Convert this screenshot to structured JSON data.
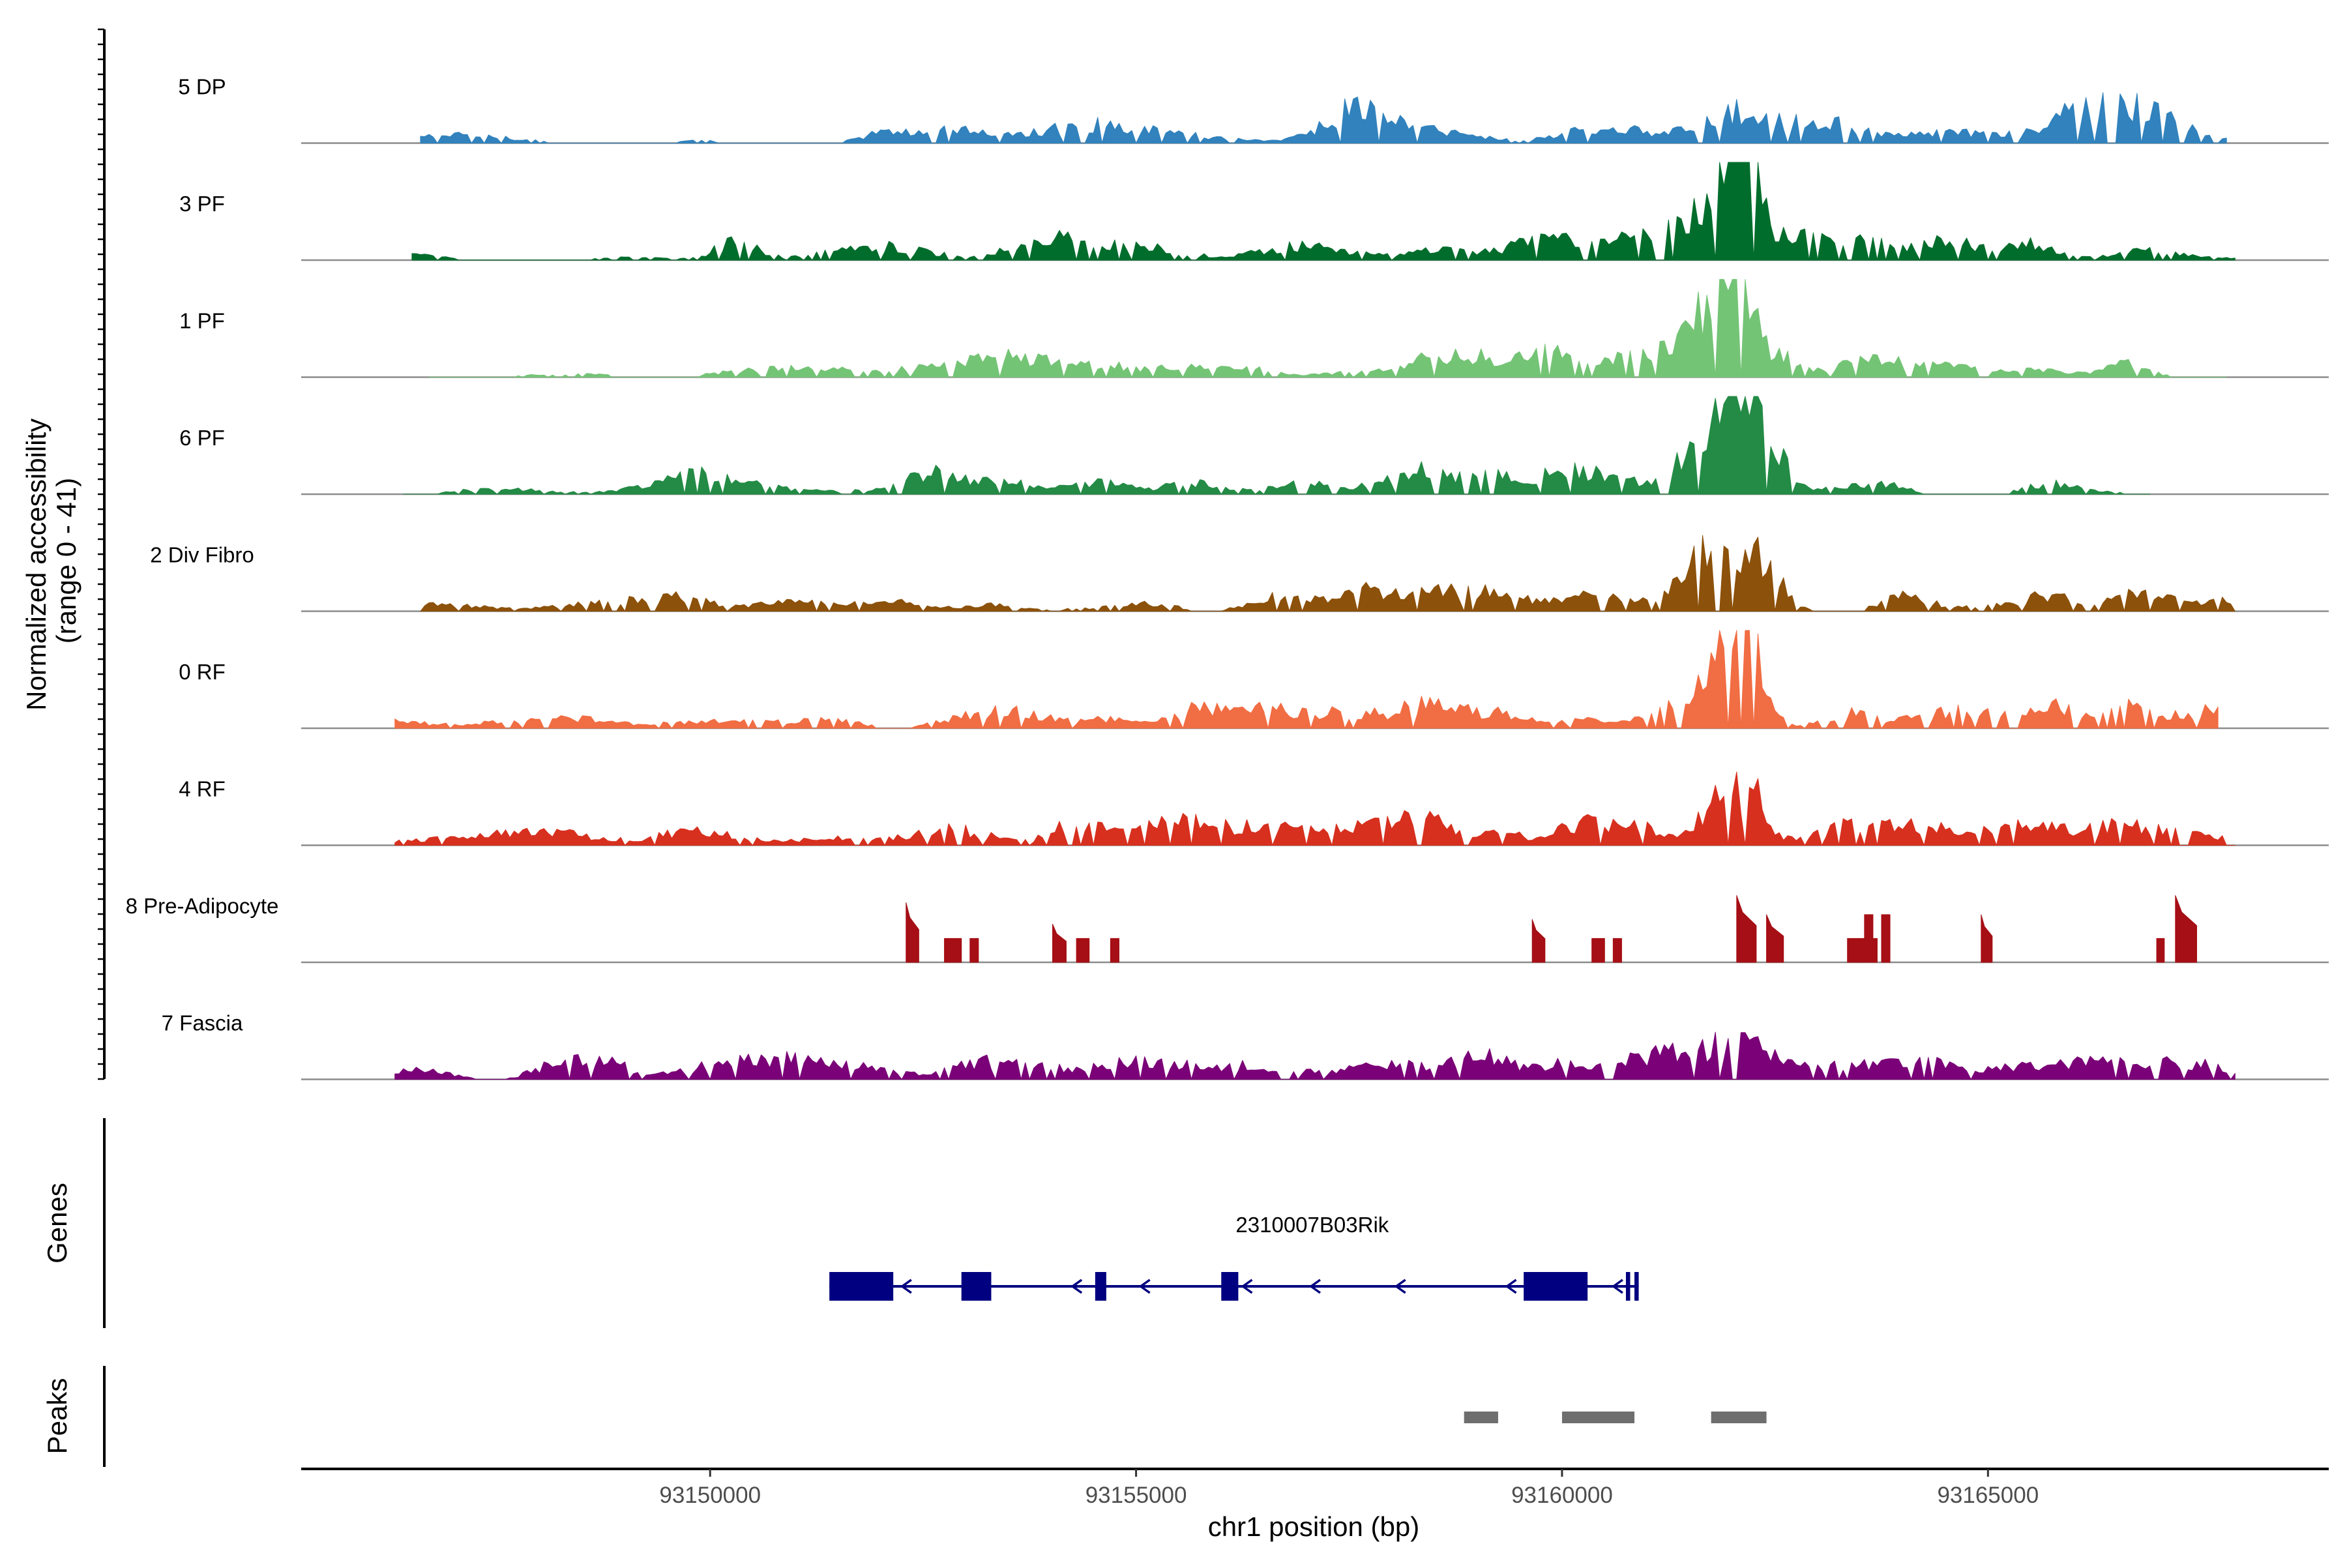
{
  "chart_data": {
    "type": "area",
    "title": "",
    "ylabel_line1": "Normalized accessibility",
    "ylabel_line2": "(range 0 - 41)",
    "y_range": [
      0,
      41
    ],
    "x_range": [
      93145200,
      93169000
    ],
    "xlabel": "chr1 position (bp)",
    "x_ticks": [
      93150000,
      93155000,
      93160000,
      93165000
    ],
    "x_tick_labels": [
      "93150000",
      "93155000",
      "93160000",
      "93165000"
    ],
    "bin_size_bp": 50,
    "tracks": [
      {
        "name": "5 DP",
        "color": "#3182bd",
        "start": 93146600,
        "end": 93167800,
        "peaks": [
          [
            93152000,
            3,
            300
          ],
          [
            93152900,
            3,
            300
          ],
          [
            93154300,
            5,
            500
          ],
          [
            93157600,
            11,
            350
          ],
          [
            93158600,
            5,
            600
          ],
          [
            93160500,
            5,
            500
          ],
          [
            93161800,
            6,
            400
          ],
          [
            93162300,
            9,
            400
          ],
          [
            93163200,
            4,
            300
          ],
          [
            93164500,
            3,
            300
          ],
          [
            93166100,
            8,
            300
          ],
          [
            93166600,
            8,
            400
          ],
          [
            93167000,
            7,
            400
          ]
        ]
      },
      {
        "name": "3 PF",
        "color": "#006d2c",
        "start": 93146500,
        "end": 93167900,
        "peaks": [
          [
            93150300,
            8,
            250
          ],
          [
            93152000,
            3,
            400
          ],
          [
            93154000,
            5,
            400
          ],
          [
            93155200,
            4,
            400
          ],
          [
            93157000,
            4,
            500
          ],
          [
            93158500,
            5,
            500
          ],
          [
            93159800,
            6,
            350
          ],
          [
            93160500,
            5,
            400
          ],
          [
            93161200,
            7,
            400
          ],
          [
            93161700,
            11,
            280
          ],
          [
            93161950,
            13,
            200
          ],
          [
            93162200,
            34,
            110
          ],
          [
            93162150,
            18,
            260
          ],
          [
            93162900,
            8,
            200
          ],
          [
            93163500,
            6,
            400
          ],
          [
            93164500,
            4,
            300
          ],
          [
            93165500,
            5,
            300
          ],
          [
            93166800,
            4,
            400
          ]
        ]
      },
      {
        "name": "1 PF",
        "color": "#74c476",
        "start": 93146700,
        "end": 93167800,
        "peaks": [
          [
            93152500,
            2,
            600
          ],
          [
            93153500,
            4,
            400
          ],
          [
            93154500,
            5,
            400
          ],
          [
            93155500,
            3,
            500
          ],
          [
            93156300,
            2,
            400
          ],
          [
            93157500,
            3,
            400
          ],
          [
            93158500,
            5,
            400
          ],
          [
            93159200,
            5,
            500
          ],
          [
            93159800,
            7,
            200
          ],
          [
            93160600,
            4,
            500
          ],
          [
            93161300,
            5,
            400
          ],
          [
            93161800,
            11,
            250
          ],
          [
            93162100,
            33,
            150
          ],
          [
            93161900,
            17,
            250
          ],
          [
            93162600,
            6,
            200
          ],
          [
            93163600,
            4,
            400
          ],
          [
            93164500,
            3,
            400
          ],
          [
            93165500,
            4,
            400
          ],
          [
            93166600,
            5,
            200
          ]
        ]
      },
      {
        "name": "6 PF",
        "color": "#238b45",
        "start": 93146400,
        "end": 93166900,
        "peaks": [
          [
            93149800,
            5,
            400
          ],
          [
            93152600,
            6,
            250
          ],
          [
            93153500,
            5,
            400
          ],
          [
            93154500,
            5,
            300
          ],
          [
            93155800,
            4,
            400
          ],
          [
            93156900,
            5,
            300
          ],
          [
            93158300,
            7,
            300
          ],
          [
            93159100,
            6,
            400
          ],
          [
            93160200,
            6,
            400
          ],
          [
            93161500,
            5,
            300
          ],
          [
            93161900,
            18,
            350
          ],
          [
            93162100,
            22,
            250
          ],
          [
            93162400,
            12,
            200
          ],
          [
            93163800,
            4,
            300
          ],
          [
            93165700,
            3,
            300
          ]
        ]
      },
      {
        "name": "2 Div Fibro",
        "color": "#8c510a",
        "start": 93146600,
        "end": 93167900,
        "peaks": [
          [
            93149700,
            3,
            300
          ],
          [
            93150900,
            3,
            300
          ],
          [
            93152300,
            3,
            400
          ],
          [
            93153300,
            4,
            300
          ],
          [
            93155200,
            3,
            300
          ],
          [
            93156700,
            4,
            300
          ],
          [
            93157700,
            6,
            200
          ],
          [
            93158400,
            9,
            250
          ],
          [
            93159100,
            5,
            300
          ],
          [
            93160400,
            5,
            300
          ],
          [
            93161300,
            6,
            300
          ],
          [
            93161800,
            25,
            250
          ],
          [
            93162300,
            22,
            220
          ],
          [
            93164000,
            7,
            300
          ],
          [
            93165700,
            5,
            300
          ],
          [
            93166700,
            5,
            300
          ]
        ]
      },
      {
        "name": "0 RF",
        "color": "#f16d43",
        "start": 93146300,
        "end": 93167700,
        "peaks": [
          [
            93150000,
            3,
            400
          ],
          [
            93151500,
            3,
            400
          ],
          [
            93152900,
            4,
            400
          ],
          [
            93153600,
            4,
            400
          ],
          [
            93154700,
            3,
            300
          ],
          [
            93155700,
            6,
            300
          ],
          [
            93156500,
            4,
            300
          ],
          [
            93157500,
            5,
            400
          ],
          [
            93158400,
            7,
            250
          ],
          [
            93159200,
            4,
            400
          ],
          [
            93160400,
            4,
            400
          ],
          [
            93161600,
            10,
            350
          ],
          [
            93162100,
            40,
            150
          ],
          [
            93162000,
            15,
            350
          ],
          [
            93163300,
            6,
            300
          ],
          [
            93164700,
            5,
            400
          ],
          [
            93165700,
            8,
            300
          ],
          [
            93166700,
            5,
            300
          ],
          [
            93167600,
            5,
            200
          ]
        ]
      },
      {
        "name": "4 RF",
        "color": "#d7301f",
        "start": 93146300,
        "end": 93167900,
        "peaks": [
          [
            93148300,
            4,
            500
          ],
          [
            93149800,
            5,
            500
          ],
          [
            93151500,
            4,
            500
          ],
          [
            93152800,
            4,
            400
          ],
          [
            93154300,
            9,
            250
          ],
          [
            93155500,
            5,
            400
          ],
          [
            93156400,
            4,
            400
          ],
          [
            93157000,
            4,
            400
          ],
          [
            93157900,
            5,
            400
          ],
          [
            93158400,
            7,
            300
          ],
          [
            93159300,
            6,
            300
          ],
          [
            93160200,
            8,
            300
          ],
          [
            93160900,
            6,
            300
          ],
          [
            93161800,
            16,
            200
          ],
          [
            93162200,
            22,
            180
          ],
          [
            93163500,
            5,
            400
          ],
          [
            93164400,
            5,
            400
          ],
          [
            93165400,
            4,
            400
          ],
          [
            93166600,
            5,
            400
          ],
          [
            93167300,
            4,
            400
          ]
        ]
      },
      {
        "name": "8 Pre-Adipocyte",
        "color": "#a50f15",
        "start": 93152200,
        "end": 93167500,
        "blocks": [
          [
            93152300,
            93152450,
            25,
            true
          ],
          [
            93152750,
            93152950,
            10,
            false
          ],
          [
            93153050,
            93153150,
            10,
            false
          ],
          [
            93154020,
            93154180,
            16,
            true
          ],
          [
            93154300,
            93154450,
            10,
            false
          ],
          [
            93154700,
            93154800,
            10,
            false
          ],
          [
            93159650,
            93159800,
            18,
            true
          ],
          [
            93160350,
            93160500,
            10,
            false
          ],
          [
            93160600,
            93160700,
            10,
            false
          ],
          [
            93162050,
            93162280,
            28,
            true
          ],
          [
            93162400,
            93162600,
            20,
            true
          ],
          [
            93163350,
            93163700,
            10,
            false
          ],
          [
            93163550,
            93163650,
            20,
            false
          ],
          [
            93163750,
            93163850,
            20,
            false
          ],
          [
            93164920,
            93165050,
            20,
            true
          ],
          [
            93166980,
            93167070,
            10,
            false
          ],
          [
            93167200,
            93167450,
            28,
            true
          ]
        ]
      },
      {
        "name": "7 Fascia",
        "color": "#7a0177",
        "start": 93146300,
        "end": 93167900,
        "peaks": [
          [
            93146700,
            4,
            400
          ],
          [
            93148200,
            5,
            300
          ],
          [
            93148800,
            5,
            300
          ],
          [
            93150000,
            5,
            400
          ],
          [
            93150700,
            4,
            400
          ],
          [
            93151500,
            4,
            400
          ],
          [
            93153300,
            4,
            400
          ],
          [
            93154800,
            5,
            400
          ],
          [
            93155400,
            5,
            400
          ],
          [
            93156400,
            4,
            400
          ],
          [
            93157500,
            4,
            400
          ],
          [
            93158100,
            5,
            400
          ],
          [
            93159000,
            7,
            300
          ],
          [
            93160000,
            5,
            400
          ],
          [
            93161000,
            6,
            400
          ],
          [
            93161800,
            6,
            400
          ],
          [
            93162200,
            7,
            300
          ],
          [
            93163200,
            5,
            400
          ],
          [
            93164300,
            4,
            400
          ],
          [
            93165500,
            6,
            400
          ],
          [
            93166300,
            6,
            400
          ],
          [
            93167100,
            5,
            400
          ],
          [
            93167700,
            4,
            300
          ]
        ]
      }
    ],
    "genes_title": "Genes",
    "gene": {
      "name": "2310007B03Rik",
      "color": "#000080",
      "strand": "-",
      "start": 93151400,
      "end": 93160900,
      "exons": [
        [
          93151400,
          93152150
        ],
        [
          93152950,
          93153300
        ],
        [
          93154520,
          93154650
        ],
        [
          93156000,
          93156200
        ],
        [
          93159550,
          93160300
        ],
        [
          93160750,
          93160800
        ],
        [
          93160850,
          93160900
        ]
      ],
      "arrows": [
        93152300,
        93154300,
        93155100,
        93156300,
        93157100,
        93158100,
        93159400,
        93160650
      ]
    },
    "peaks_title": "Peaks",
    "peak_regions": [
      [
        93158850,
        93159250
      ],
      [
        93160000,
        93160850
      ],
      [
        93161750,
        93162400
      ]
    ],
    "peak_color": "#6e6e6e"
  }
}
